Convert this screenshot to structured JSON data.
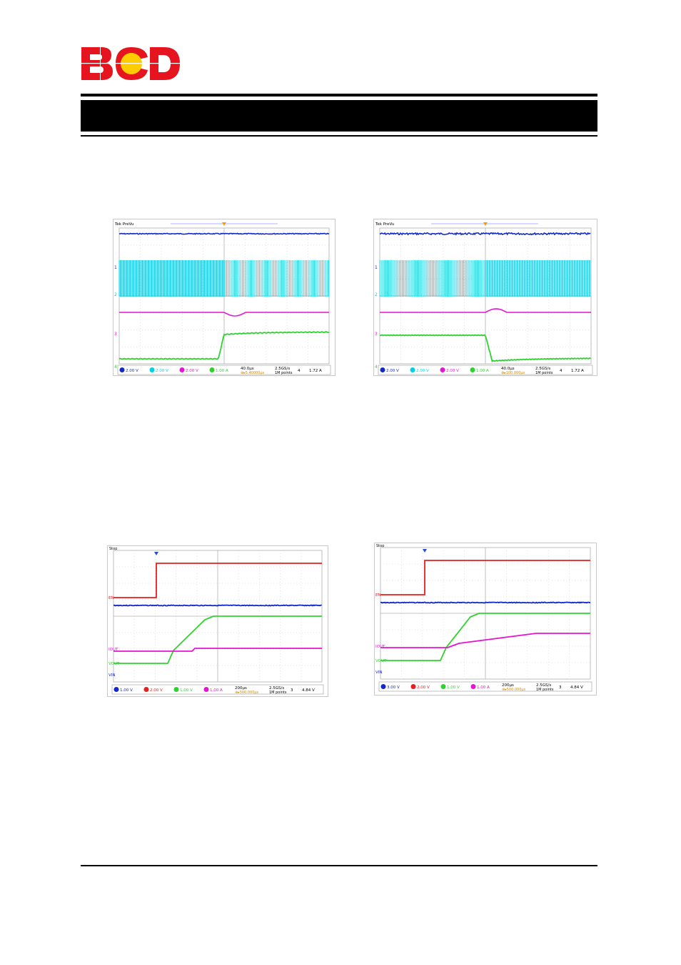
{
  "brand": {
    "logo_text": "BCD"
  },
  "header": {
    "title": ""
  },
  "scopes": [
    {
      "id": "scope-1",
      "header_text": "Tek PreVu",
      "timebase": "40.0µs",
      "trigger_pos": "⊕▸5.40000µs",
      "sample": "2.5GS/s",
      "points": "1M points",
      "trigger_ch": "4",
      "trigger_level": "1.72 A",
      "channels": [
        {
          "num": "1",
          "scale": "2.00 V",
          "color": "#1428c8"
        },
        {
          "num": "2",
          "scale": "2.00 V",
          "color": "#00d2e6"
        },
        {
          "num": "3",
          "scale": "2.00 V",
          "color": "#e614d2"
        },
        {
          "num": "4",
          "scale": "1.00 A",
          "color": "#2ed22e"
        }
      ],
      "labels": [
        {
          "text": "1"
        },
        {
          "text": "2"
        },
        {
          "text": "3"
        },
        {
          "text": "4"
        }
      ]
    },
    {
      "id": "scope-2",
      "header_text": "Tek PreVu",
      "timebase": "40.0µs",
      "trigger_pos": "⊕▸100.000µs",
      "sample": "2.5GS/s",
      "points": "1M points",
      "trigger_ch": "4",
      "trigger_level": "1.72 A",
      "channels": [
        {
          "num": "1",
          "scale": "2.00 V",
          "color": "#1428c8"
        },
        {
          "num": "2",
          "scale": "2.00 V",
          "color": "#00d2e6"
        },
        {
          "num": "3",
          "scale": "2.00 V",
          "color": "#e614d2"
        },
        {
          "num": "4",
          "scale": "1.00 A",
          "color": "#2ed22e"
        }
      ],
      "labels": [
        {
          "text": "1"
        },
        {
          "text": "2"
        },
        {
          "text": "3"
        },
        {
          "text": "4"
        }
      ]
    },
    {
      "id": "scope-3",
      "header_text": "Stop",
      "timebase": "200µs",
      "trigger_pos": "⊕▸500.000µs",
      "sample": "2.5GS/s",
      "points": "1M points",
      "trigger_ch": "3",
      "trigger_level": "4.84 V",
      "channels": [
        {
          "num": "1",
          "scale": "1.00 V",
          "color": "#1428c8"
        },
        {
          "num": "2",
          "scale": "2.00 V",
          "color": "#e61e1e"
        },
        {
          "num": "3",
          "scale": "1.00 V",
          "color": "#2ed22e"
        },
        {
          "num": "4",
          "scale": "1.00 A",
          "color": "#e614d2"
        }
      ],
      "labels": [
        {
          "text": "EN"
        },
        {
          "text": "IOUT"
        },
        {
          "text": "VOUT"
        },
        {
          "text": "VIN"
        }
      ]
    },
    {
      "id": "scope-4",
      "header_text": "Stop",
      "timebase": "200µs",
      "trigger_pos": "⊕▸500.000µs",
      "sample": "2.5GS/s",
      "points": "1M points",
      "trigger_ch": "3",
      "trigger_level": "4.84 V",
      "channels": [
        {
          "num": "1",
          "scale": "3.00 V",
          "color": "#1428c8"
        },
        {
          "num": "2",
          "scale": "2.00 V",
          "color": "#e61e1e"
        },
        {
          "num": "3",
          "scale": "1.00 V",
          "color": "#2ed22e"
        },
        {
          "num": "4",
          "scale": "1.00 A",
          "color": "#e614d2"
        }
      ],
      "labels": [
        {
          "text": "EN"
        },
        {
          "text": "IOUT"
        },
        {
          "text": "VOUT"
        },
        {
          "text": "VIN"
        }
      ]
    }
  ]
}
